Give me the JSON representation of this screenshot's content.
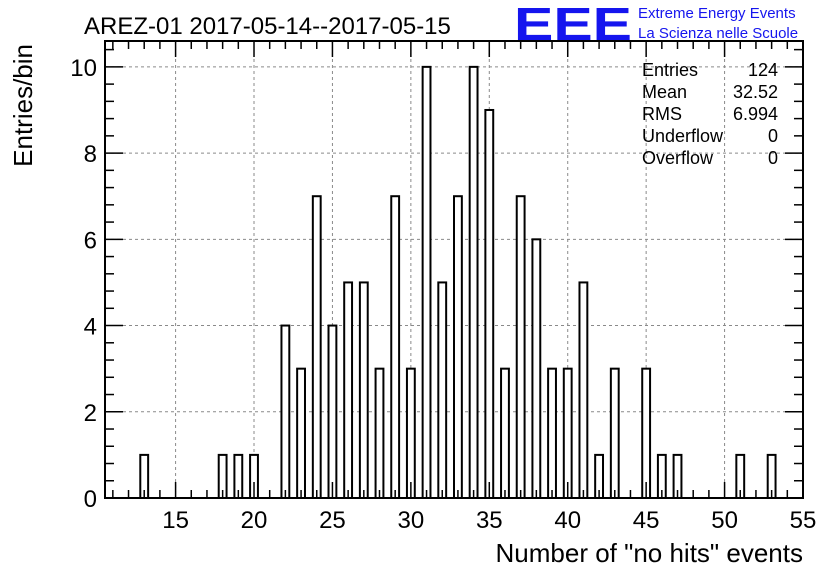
{
  "chart_data": {
    "type": "bar",
    "title": "AREZ-01 2017-05-14--2017-05-15",
    "xlabel": "Number of \"no hits\" events",
    "ylabel": "Entries/bin",
    "xlim": [
      10.5,
      55
    ],
    "ylim": [
      0,
      10.6
    ],
    "x_ticks": [
      15,
      20,
      25,
      30,
      35,
      40,
      45,
      50,
      55
    ],
    "y_ticks": [
      0,
      2,
      4,
      6,
      8,
      10
    ],
    "bin_width": 0.5,
    "grid": true,
    "bins": [
      {
        "x": 13,
        "y": 1
      },
      {
        "x": 18,
        "y": 1
      },
      {
        "x": 19,
        "y": 1
      },
      {
        "x": 20,
        "y": 1
      },
      {
        "x": 22,
        "y": 4
      },
      {
        "x": 23,
        "y": 3
      },
      {
        "x": 24,
        "y": 7
      },
      {
        "x": 25,
        "y": 4
      },
      {
        "x": 26,
        "y": 5
      },
      {
        "x": 27,
        "y": 5
      },
      {
        "x": 28,
        "y": 3
      },
      {
        "x": 29,
        "y": 7
      },
      {
        "x": 30,
        "y": 3
      },
      {
        "x": 31,
        "y": 10
      },
      {
        "x": 32,
        "y": 5
      },
      {
        "x": 33,
        "y": 7
      },
      {
        "x": 34,
        "y": 10
      },
      {
        "x": 35,
        "y": 9
      },
      {
        "x": 36,
        "y": 3
      },
      {
        "x": 37,
        "y": 7
      },
      {
        "x": 38,
        "y": 6
      },
      {
        "x": 39,
        "y": 3
      },
      {
        "x": 40,
        "y": 3
      },
      {
        "x": 41,
        "y": 5
      },
      {
        "x": 42,
        "y": 1
      },
      {
        "x": 43,
        "y": 3
      },
      {
        "x": 45,
        "y": 3
      },
      {
        "x": 46,
        "y": 1
      },
      {
        "x": 47,
        "y": 1
      },
      {
        "x": 51,
        "y": 1
      },
      {
        "x": 53,
        "y": 1
      }
    ],
    "stats": [
      {
        "label": "Entries",
        "value": "124"
      },
      {
        "label": "Mean",
        "value": "32.52"
      },
      {
        "label": "RMS",
        "value": "6.994"
      },
      {
        "label": "Underflow",
        "value": "0"
      },
      {
        "label": "Overflow",
        "value": "0"
      }
    ]
  },
  "logo": {
    "mark": "EEE",
    "line1": "Extreme Energy Events",
    "line2": "La Scienza nelle Scuole",
    "color": "#1515ee"
  }
}
